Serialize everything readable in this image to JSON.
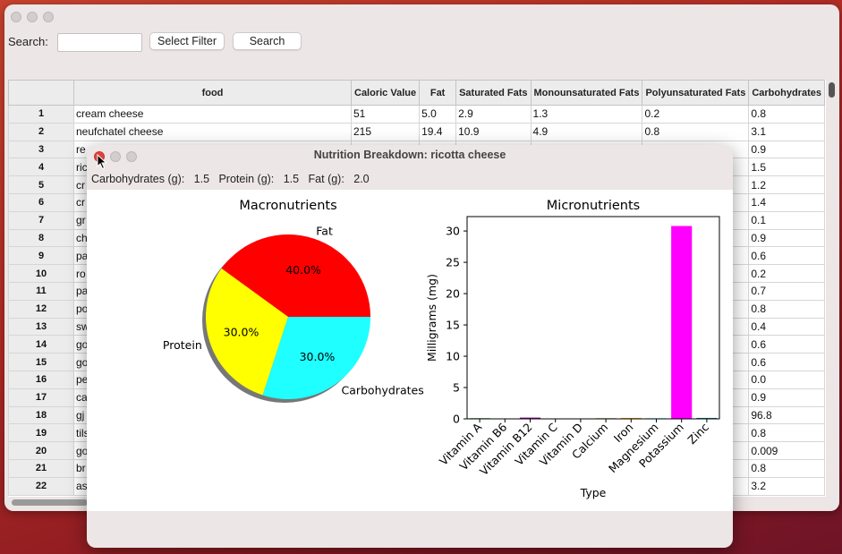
{
  "search": {
    "label": "Search:",
    "value": "",
    "select_filter_label": "Select Filter",
    "search_button_label": "Search"
  },
  "table": {
    "columns": [
      "food",
      "Caloric Value",
      "Fat",
      "Saturated Fats",
      "Monounsaturated Fats",
      "Polyunsaturated Fats",
      "Carbohydrates"
    ],
    "rows": [
      [
        "1",
        "cream cheese",
        "51",
        "5.0",
        "2.9",
        "1.3",
        "0.2",
        "0.8"
      ],
      [
        "2",
        "neufchatel cheese",
        "215",
        "19.4",
        "10.9",
        "4.9",
        "0.8",
        "3.1"
      ],
      [
        "3",
        "re",
        "",
        "",
        "",
        "",
        "",
        "0.9"
      ],
      [
        "4",
        "ric",
        "",
        "",
        "",
        "",
        "",
        "1.5"
      ],
      [
        "5",
        "cr",
        "",
        "",
        "",
        "",
        "",
        "1.2"
      ],
      [
        "6",
        "cr",
        "",
        "",
        "",
        "",
        "",
        "1.4"
      ],
      [
        "7",
        "gr",
        "",
        "",
        "",
        "",
        "",
        "0.1"
      ],
      [
        "8",
        "ch",
        "",
        "",
        "",
        "",
        "",
        "0.9"
      ],
      [
        "9",
        "pa",
        "",
        "",
        "",
        "",
        "",
        "0.6"
      ],
      [
        "10",
        "ro",
        "",
        "",
        "",
        "",
        "",
        "0.2"
      ],
      [
        "11",
        "pa",
        "",
        "",
        "",
        "",
        "",
        "0.7"
      ],
      [
        "12",
        "po",
        "",
        "",
        "",
        "",
        "",
        "0.8"
      ],
      [
        "13",
        "sw",
        "",
        "",
        "",
        "",
        "",
        "0.4"
      ],
      [
        "14",
        "go",
        "",
        "",
        "",
        "",
        "",
        "0.6"
      ],
      [
        "15",
        "go",
        "",
        "",
        "",
        "",
        "",
        "0.6"
      ],
      [
        "16",
        "pe",
        "",
        "",
        "",
        "",
        "",
        "0.0"
      ],
      [
        "17",
        "ca",
        "",
        "",
        "",
        "",
        "",
        "0.9"
      ],
      [
        "18",
        "gj",
        "",
        "",
        "",
        "",
        "",
        "96.8"
      ],
      [
        "19",
        "tils",
        "",
        "",
        "",
        "",
        "",
        "0.8"
      ],
      [
        "20",
        "go",
        "",
        "",
        "",
        "",
        "",
        "0.009"
      ],
      [
        "21",
        "br",
        "",
        "",
        "",
        "",
        "",
        "0.8"
      ],
      [
        "22",
        "as",
        "",
        "",
        "",
        "",
        "",
        "3.2"
      ]
    ]
  },
  "popup": {
    "title": "Nutrition Breakdown: ricotta cheese",
    "summary": {
      "carb_label": "Carbohydrates (g):",
      "carb_value": "1.5",
      "protein_label": "Protein (g):",
      "protein_value": "1.5",
      "fat_label": "Fat (g):",
      "fat_value": "2.0"
    }
  },
  "chart_data": [
    {
      "type": "pie",
      "title": "Macronutrients",
      "labels": [
        "Fat",
        "Protein",
        "Carbohydrates"
      ],
      "values": [
        40.0,
        30.0,
        30.0
      ],
      "value_labels": [
        "40.0%",
        "30.0%",
        "30.0%"
      ],
      "colors": [
        "#ff0000",
        "#ffff00",
        "#1fffff"
      ],
      "shadow": true
    },
    {
      "type": "bar",
      "title": "Micronutrients",
      "xlabel": "Type",
      "ylabel": "Milligrams (mg)",
      "categories": [
        "Vitamin A",
        "Vitamin B6",
        "Vitamin B12",
        "Vitamin C",
        "Vitamin D",
        "Calcium",
        "Iron",
        "Magnesium",
        "Potassium",
        "Zinc"
      ],
      "values": [
        0.1,
        0.02,
        0.2,
        0.02,
        0.02,
        0.1,
        0.15,
        0.1,
        30.8,
        0.15
      ],
      "colors": [
        "#008000",
        "#ff0000",
        "#8b008b",
        "#00bfbf",
        "#bf00bf",
        "#808000",
        "#ffa500",
        "#00ffff",
        "#ff00ff",
        "#008080"
      ],
      "ylim": [
        0,
        32.3
      ],
      "yticks": [
        0,
        5,
        10,
        15,
        20,
        25,
        30
      ],
      "ytick_labels": [
        "0",
        "5",
        "10",
        "15",
        "20",
        "25",
        "30"
      ]
    }
  ]
}
